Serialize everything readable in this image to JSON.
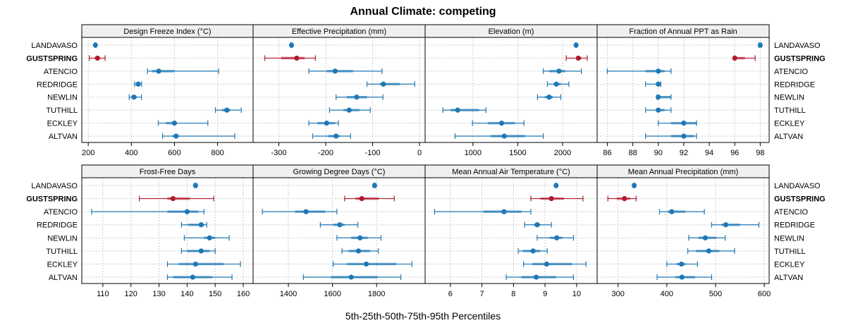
{
  "chart_data": {
    "type": "dotplot-percentile",
    "title": "Annual Climate: competing",
    "xlabel": "5th-25th-50th-75th-95th Percentiles",
    "highlight_series": "GUSTSPRING",
    "colors": {
      "default": "#1f78b4",
      "highlight": "#b2182b",
      "grid": "#cccccc",
      "strip": "#f0f0f0"
    },
    "categories": [
      "LANDAVASO",
      "GUSTSPRING",
      "ATENCIO",
      "REDRIDGE",
      "NEWLIN",
      "TUTHILL",
      "ECKLEY",
      "ALTVAN"
    ],
    "panels": [
      {
        "title": "Design Freeze Index (°C)",
        "ticks": [
          200,
          400,
          600,
          800
        ],
        "xlim": [
          170,
          965
        ],
        "values": [
          [
            230,
            231,
            233,
            235,
            236
          ],
          [
            205,
            230,
            243,
            255,
            278
          ],
          [
            475,
            495,
            527,
            600,
            805
          ],
          [
            415,
            420,
            432,
            440,
            448
          ],
          [
            390,
            400,
            412,
            425,
            447
          ],
          [
            790,
            820,
            843,
            860,
            910
          ],
          [
            525,
            560,
            600,
            610,
            755
          ],
          [
            545,
            590,
            608,
            620,
            880
          ]
        ]
      },
      {
        "title": "Effective Precipitation (mm)",
        "ticks": [
          -300,
          -200,
          -100,
          0
        ],
        "xlim": [
          -355,
          12
        ],
        "values": [
          [
            -275,
            -274,
            -273,
            -272,
            -271
          ],
          [
            -330,
            -295,
            -262,
            -245,
            -222
          ],
          [
            -236,
            -198,
            -180,
            -142,
            -80
          ],
          [
            -112,
            -85,
            -77,
            -42,
            -10
          ],
          [
            -178,
            -155,
            -134,
            -112,
            -78
          ],
          [
            -192,
            -162,
            -150,
            -128,
            -105
          ],
          [
            -236,
            -218,
            -198,
            -180,
            -173
          ],
          [
            -228,
            -195,
            -178,
            -170,
            -147
          ]
        ]
      },
      {
        "title": "Elevation (m)",
        "ticks": [
          1000,
          1500,
          2000
        ],
        "xlim": [
          467,
          2385
        ],
        "values": [
          [
            2145,
            2148,
            2150,
            2152,
            2155
          ],
          [
            2040,
            2150,
            2175,
            2210,
            2275
          ],
          [
            1785,
            1850,
            1960,
            2030,
            2210
          ],
          [
            1830,
            1900,
            1930,
            1980,
            2070
          ],
          [
            1720,
            1800,
            1850,
            1890,
            1980
          ],
          [
            665,
            750,
            830,
            1070,
            1145
          ],
          [
            995,
            1165,
            1320,
            1470,
            1570
          ],
          [
            800,
            1200,
            1350,
            1580,
            1785
          ]
        ]
      },
      {
        "title": "Fraction of Annual PPT as Rain",
        "ticks": [
          86,
          88,
          90,
          92,
          94,
          96,
          98
        ],
        "xlim": [
          85.2,
          98.7
        ],
        "values": [
          [
            97.9,
            98,
            98,
            98,
            98.1
          ],
          [
            96,
            96,
            96,
            96.8,
            97.6
          ],
          [
            86,
            89,
            90,
            90.5,
            91
          ],
          [
            89,
            89.8,
            90,
            90.1,
            90.2
          ],
          [
            89.9,
            90,
            90,
            91,
            91
          ],
          [
            89,
            89.8,
            90,
            90.5,
            91
          ],
          [
            90,
            91,
            92,
            93,
            93
          ],
          [
            89,
            91,
            92,
            92.8,
            93
          ]
        ]
      },
      {
        "title": "Frost-Free Days",
        "ticks": [
          110,
          120,
          130,
          140,
          150,
          160
        ],
        "xlim": [
          102.5,
          163.5
        ],
        "values": [
          [
            142.6,
            142.8,
            143,
            143.2,
            143.4
          ],
          [
            123,
            133,
            135,
            141,
            149.5
          ],
          [
            106,
            133,
            140,
            144,
            146
          ],
          [
            138,
            140.5,
            145,
            146,
            147
          ],
          [
            139,
            146,
            148,
            150,
            155
          ],
          [
            138,
            140,
            145,
            148,
            150
          ],
          [
            133,
            137,
            143,
            153,
            159
          ],
          [
            133,
            135,
            142,
            149,
            156
          ]
        ]
      },
      {
        "title": "Growing Degree Days (°C)",
        "ticks": [
          1400,
          1600,
          1800
        ],
        "xlim": [
          1240,
          2020
        ],
        "values": [
          [
            1786,
            1789,
            1791,
            1793,
            1796
          ],
          [
            1655,
            1705,
            1733,
            1810,
            1880
          ],
          [
            1282,
            1430,
            1480,
            1567,
            1620
          ],
          [
            1545,
            1605,
            1633,
            1655,
            1715
          ],
          [
            1620,
            1685,
            1725,
            1760,
            1820
          ],
          [
            1643,
            1673,
            1718,
            1770,
            1808
          ],
          [
            1603,
            1665,
            1753,
            1890,
            1960
          ],
          [
            1468,
            1593,
            1685,
            1805,
            1910
          ]
        ]
      },
      {
        "title": "Mean Annual Air Temperature (°C)",
        "ticks": [
          6,
          7,
          8,
          9,
          10
        ],
        "xlim": [
          5.2,
          10.65
        ],
        "values": [
          [
            9.33,
            9.34,
            9.35,
            9.36,
            9.37
          ],
          [
            8.55,
            8.85,
            9.2,
            9.6,
            10.2
          ],
          [
            5.5,
            7.05,
            7.7,
            8.25,
            8.55
          ],
          [
            8.35,
            8.65,
            8.75,
            8.85,
            9.2
          ],
          [
            8.75,
            9.15,
            9.37,
            9.55,
            9.9
          ],
          [
            8.15,
            8.3,
            8.62,
            8.85,
            9.07
          ],
          [
            8.32,
            8.6,
            9.05,
            9.85,
            10.3
          ],
          [
            7.77,
            8.25,
            8.72,
            9.35,
            9.9
          ]
        ]
      },
      {
        "title": "Mean Annual Precipitation (mm)",
        "ticks": [
          300,
          400,
          500,
          600
        ],
        "xlim": [
          257,
          610
        ],
        "values": [
          [
            331,
            332,
            333,
            334,
            335
          ],
          [
            279,
            297,
            313,
            325,
            337
          ],
          [
            385,
            402,
            410,
            438,
            477
          ],
          [
            492,
            512,
            521,
            550,
            589
          ],
          [
            445,
            465,
            479,
            502,
            520
          ],
          [
            443,
            460,
            486,
            508,
            539
          ],
          [
            400,
            420,
            430,
            438,
            463
          ],
          [
            380,
            418,
            431,
            458,
            492
          ]
        ]
      }
    ]
  }
}
